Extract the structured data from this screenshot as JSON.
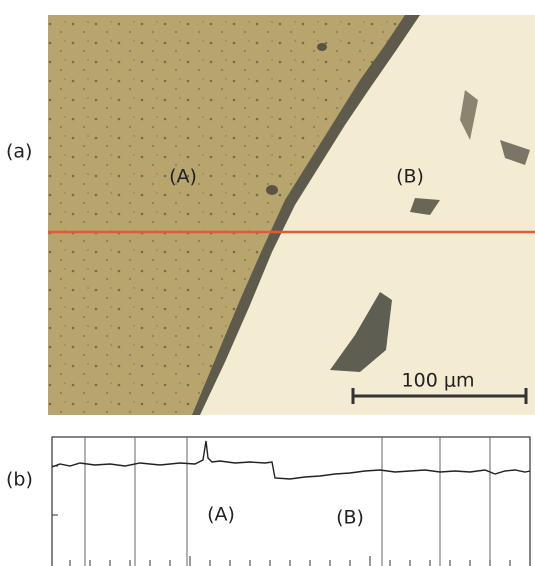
{
  "panel_a": {
    "label": "(a)",
    "region_labels": [
      "(A)",
      "(B)"
    ],
    "scale_bar": "100 μm"
  },
  "panel_b": {
    "label": "(b)",
    "region_labels": [
      "(A)",
      "(B)"
    ]
  }
}
